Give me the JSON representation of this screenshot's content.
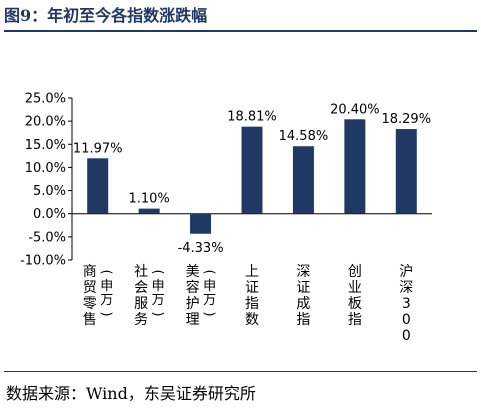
{
  "figure": {
    "title": "图9：年初至今各指数涨跌幅",
    "source": "数据来源：Wind，东吴证券研究所"
  },
  "chart_data": {
    "type": "bar",
    "title": "",
    "xlabel": "",
    "ylabel": "",
    "categories": [
      "商贸零售（申万）",
      "社会服务（申万）",
      "美容护理（申万）",
      "上证指数",
      "深证成指",
      "创业板指",
      "沪深300"
    ],
    "values": [
      11.97,
      1.1,
      -4.33,
      18.81,
      14.58,
      20.4,
      18.29
    ],
    "data_labels": [
      "11.97%",
      "1.10%",
      "-4.33%",
      "18.81%",
      "14.58%",
      "20.40%",
      "18.29%"
    ],
    "y_ticks": [
      25,
      20,
      15,
      10,
      5,
      0,
      -5,
      -10
    ],
    "y_tick_labels": [
      "25.0%",
      "20.0%",
      "15.0%",
      "10.0%",
      "5.0%",
      "0.0%",
      "-5.0%",
      "-10.0%"
    ],
    "ylim": [
      -10,
      25
    ],
    "grid": false,
    "legend": "none",
    "bar_color": "#1f3864"
  }
}
